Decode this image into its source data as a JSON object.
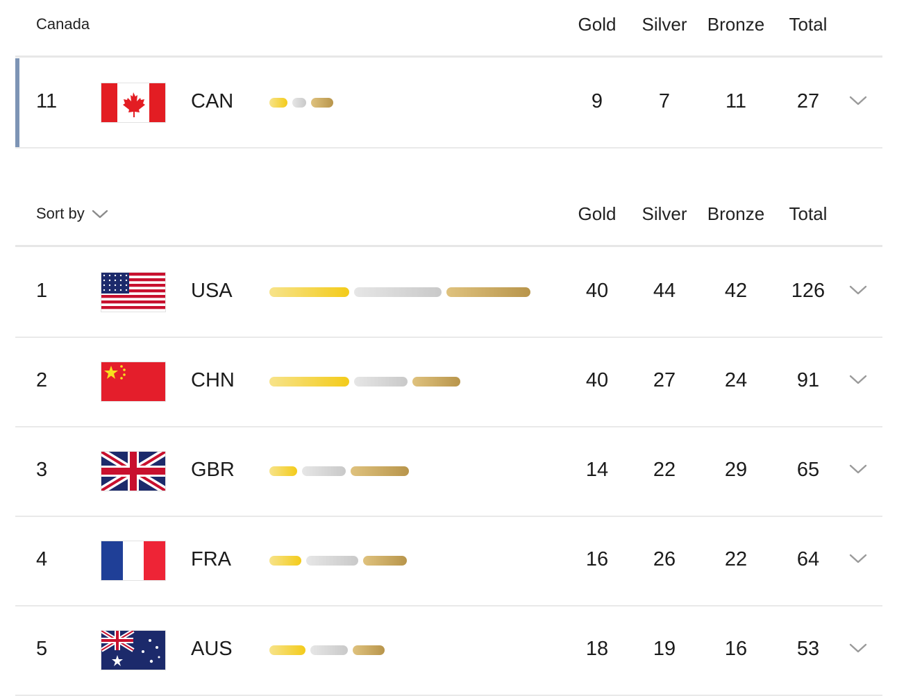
{
  "columns": {
    "gold": "Gold",
    "silver": "Silver",
    "bronze": "Bronze",
    "total": "Total"
  },
  "featured": {
    "label": "Canada",
    "row": {
      "rank": "11",
      "code": "CAN",
      "flag": "canada-flag-icon",
      "gold": 9,
      "silver": 7,
      "bronze": 11,
      "total": 27
    }
  },
  "sort": {
    "label": "Sort by"
  },
  "rows": [
    {
      "rank": "1",
      "code": "USA",
      "flag": "usa-flag-icon",
      "gold": 40,
      "silver": 44,
      "bronze": 42,
      "total": 126
    },
    {
      "rank": "2",
      "code": "CHN",
      "flag": "china-flag-icon",
      "gold": 40,
      "silver": 27,
      "bronze": 24,
      "total": 91
    },
    {
      "rank": "3",
      "code": "GBR",
      "flag": "uk-flag-icon",
      "gold": 14,
      "silver": 22,
      "bronze": 29,
      "total": 65
    },
    {
      "rank": "4",
      "code": "FRA",
      "flag": "france-flag-icon",
      "gold": 16,
      "silver": 26,
      "bronze": 22,
      "total": 64
    },
    {
      "rank": "5",
      "code": "AUS",
      "flag": "australia-flag-icon",
      "gold": 18,
      "silver": 19,
      "bronze": 16,
      "total": 53
    }
  ],
  "colors": {
    "gold": "#f3cb1a",
    "silver": "#c9c9c9",
    "bronze": "#b8954b",
    "highlight": "#7d94b5"
  }
}
